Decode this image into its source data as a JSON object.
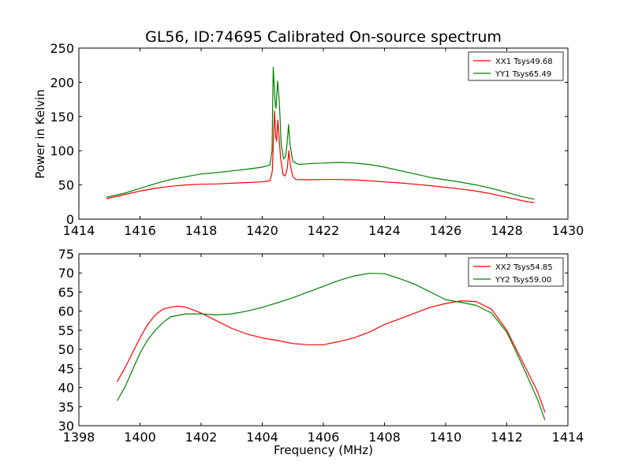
{
  "figure": {
    "title": "GL56, ID:74695 Calibrated On-source spectrum"
  },
  "chart_data": [
    {
      "type": "line",
      "title": "GL56, ID:74695 Calibrated On-source spectrum",
      "xlabel": "",
      "ylabel": "Power in Kelvin",
      "xlim": [
        1414,
        1430
      ],
      "ylim": [
        0,
        250
      ],
      "xticks": [
        1414,
        1416,
        1418,
        1420,
        1422,
        1424,
        1426,
        1428,
        1430
      ],
      "yticks": [
        0,
        50,
        100,
        150,
        200,
        250
      ],
      "legend_position": "top-right",
      "grid": false,
      "series": [
        {
          "name": "XX1 Tsys49.68",
          "color": "#ff0000",
          "points": [
            [
              1414.9,
              30
            ],
            [
              1415.5,
              36
            ],
            [
              1416.0,
              41
            ],
            [
              1416.5,
              45
            ],
            [
              1417.0,
              48
            ],
            [
              1417.5,
              50
            ],
            [
              1418.0,
              51
            ],
            [
              1418.5,
              51.5
            ],
            [
              1419.0,
              52.5
            ],
            [
              1419.5,
              53.5
            ],
            [
              1420.0,
              54.5
            ],
            [
              1420.25,
              56
            ],
            [
              1420.33,
              70
            ],
            [
              1420.4,
              158
            ],
            [
              1420.44,
              120
            ],
            [
              1420.47,
              114
            ],
            [
              1420.51,
              145
            ],
            [
              1420.55,
              120
            ],
            [
              1420.6,
              90
            ],
            [
              1420.68,
              65
            ],
            [
              1420.75,
              63
            ],
            [
              1420.82,
              75
            ],
            [
              1420.87,
              100
            ],
            [
              1420.92,
              78
            ],
            [
              1421.0,
              62
            ],
            [
              1421.1,
              58
            ],
            [
              1421.5,
              57.5
            ],
            [
              1422.0,
              58
            ],
            [
              1422.5,
              58
            ],
            [
              1423.0,
              57.5
            ],
            [
              1423.5,
              56
            ],
            [
              1424.0,
              54.5
            ],
            [
              1424.5,
              53
            ],
            [
              1425.0,
              51
            ],
            [
              1425.5,
              49
            ],
            [
              1426.0,
              46.5
            ],
            [
              1426.5,
              44
            ],
            [
              1427.0,
              41
            ],
            [
              1427.5,
              37
            ],
            [
              1428.0,
              32
            ],
            [
              1428.5,
              27
            ],
            [
              1428.9,
              24
            ]
          ]
        },
        {
          "name": "YY1 Tsys65.49",
          "color": "#008000",
          "points": [
            [
              1414.9,
              32
            ],
            [
              1415.5,
              38
            ],
            [
              1416.0,
              45
            ],
            [
              1416.5,
              52
            ],
            [
              1417.0,
              58
            ],
            [
              1417.5,
              62
            ],
            [
              1418.0,
              66
            ],
            [
              1418.5,
              68
            ],
            [
              1419.0,
              70.5
            ],
            [
              1419.5,
              73
            ],
            [
              1420.0,
              76
            ],
            [
              1420.25,
              79
            ],
            [
              1420.32,
              100
            ],
            [
              1420.36,
              222
            ],
            [
              1420.42,
              170
            ],
            [
              1420.45,
              162
            ],
            [
              1420.5,
              202
            ],
            [
              1420.56,
              170
            ],
            [
              1420.62,
              110
            ],
            [
              1420.7,
              88
            ],
            [
              1420.77,
              92
            ],
            [
              1420.82,
              115
            ],
            [
              1420.86,
              138
            ],
            [
              1420.91,
              108
            ],
            [
              1421.0,
              84
            ],
            [
              1421.2,
              80
            ],
            [
              1421.5,
              81
            ],
            [
              1422.0,
              82
            ],
            [
              1422.5,
              83
            ],
            [
              1423.0,
              82
            ],
            [
              1423.5,
              80
            ],
            [
              1424.0,
              76
            ],
            [
              1424.5,
              71
            ],
            [
              1425.0,
              66
            ],
            [
              1425.5,
              61
            ],
            [
              1426.0,
              57.5
            ],
            [
              1426.5,
              54
            ],
            [
              1427.0,
              50
            ],
            [
              1427.5,
              45
            ],
            [
              1428.0,
              39
            ],
            [
              1428.5,
              33
            ],
            [
              1428.9,
              29
            ]
          ]
        }
      ]
    },
    {
      "type": "line",
      "title": "",
      "xlabel": "Frequency (MHz)",
      "ylabel": "",
      "xlim": [
        1398,
        1414
      ],
      "ylim": [
        30,
        75
      ],
      "xticks": [
        1398,
        1400,
        1402,
        1404,
        1406,
        1408,
        1410,
        1412,
        1414
      ],
      "yticks": [
        30,
        35,
        40,
        45,
        50,
        55,
        60,
        65,
        70,
        75
      ],
      "legend_position": "top-right",
      "grid": false,
      "series": [
        {
          "name": "XX2 Tsys54.85",
          "color": "#ff0000",
          "points": [
            [
              1399.25,
              41.5
            ],
            [
              1399.5,
              45
            ],
            [
              1399.75,
              49
            ],
            [
              1400.0,
              53
            ],
            [
              1400.25,
              56.5
            ],
            [
              1400.5,
              59
            ],
            [
              1400.75,
              60.5
            ],
            [
              1401.0,
              61
            ],
            [
              1401.25,
              61.3
            ],
            [
              1401.5,
              61
            ],
            [
              1401.75,
              60.3
            ],
            [
              1402.0,
              59.5
            ],
            [
              1402.5,
              57.5
            ],
            [
              1403.0,
              55.5
            ],
            [
              1403.5,
              54
            ],
            [
              1404.0,
              53
            ],
            [
              1404.5,
              52.3
            ],
            [
              1405.0,
              51.5
            ],
            [
              1405.5,
              51.2
            ],
            [
              1406.0,
              51.2
            ],
            [
              1406.5,
              52
            ],
            [
              1407.0,
              53
            ],
            [
              1407.5,
              54.5
            ],
            [
              1408.0,
              56.5
            ],
            [
              1408.5,
              58
            ],
            [
              1409.0,
              59.5
            ],
            [
              1409.5,
              61
            ],
            [
              1410.0,
              62
            ],
            [
              1410.5,
              62.7
            ],
            [
              1411.0,
              62.5
            ],
            [
              1411.5,
              60.5
            ],
            [
              1412.0,
              55
            ],
            [
              1412.5,
              47
            ],
            [
              1413.0,
              39
            ],
            [
              1413.25,
              33.5
            ]
          ]
        },
        {
          "name": "YY2 Tsys59.00",
          "color": "#008000",
          "points": [
            [
              1399.25,
              36.5
            ],
            [
              1399.5,
              40
            ],
            [
              1399.75,
              44.5
            ],
            [
              1400.0,
              49
            ],
            [
              1400.25,
              52.5
            ],
            [
              1400.5,
              55
            ],
            [
              1400.75,
              57
            ],
            [
              1401.0,
              58.5
            ],
            [
              1401.5,
              59.3
            ],
            [
              1402.0,
              59.3
            ],
            [
              1402.5,
              59
            ],
            [
              1403.0,
              59.3
            ],
            [
              1403.5,
              60
            ],
            [
              1404.0,
              61
            ],
            [
              1404.5,
              62.2
            ],
            [
              1405.0,
              63.5
            ],
            [
              1405.5,
              65
            ],
            [
              1406.0,
              66.5
            ],
            [
              1406.5,
              68
            ],
            [
              1407.0,
              69.2
            ],
            [
              1407.5,
              69.9
            ],
            [
              1408.0,
              69.8
            ],
            [
              1408.5,
              68.5
            ],
            [
              1409.0,
              67
            ],
            [
              1409.5,
              65
            ],
            [
              1410.0,
              63
            ],
            [
              1410.5,
              62.3
            ],
            [
              1411.0,
              61.5
            ],
            [
              1411.5,
              59.5
            ],
            [
              1412.0,
              54.5
            ],
            [
              1412.5,
              46
            ],
            [
              1413.0,
              37
            ],
            [
              1413.25,
              31.5
            ]
          ]
        }
      ]
    }
  ]
}
